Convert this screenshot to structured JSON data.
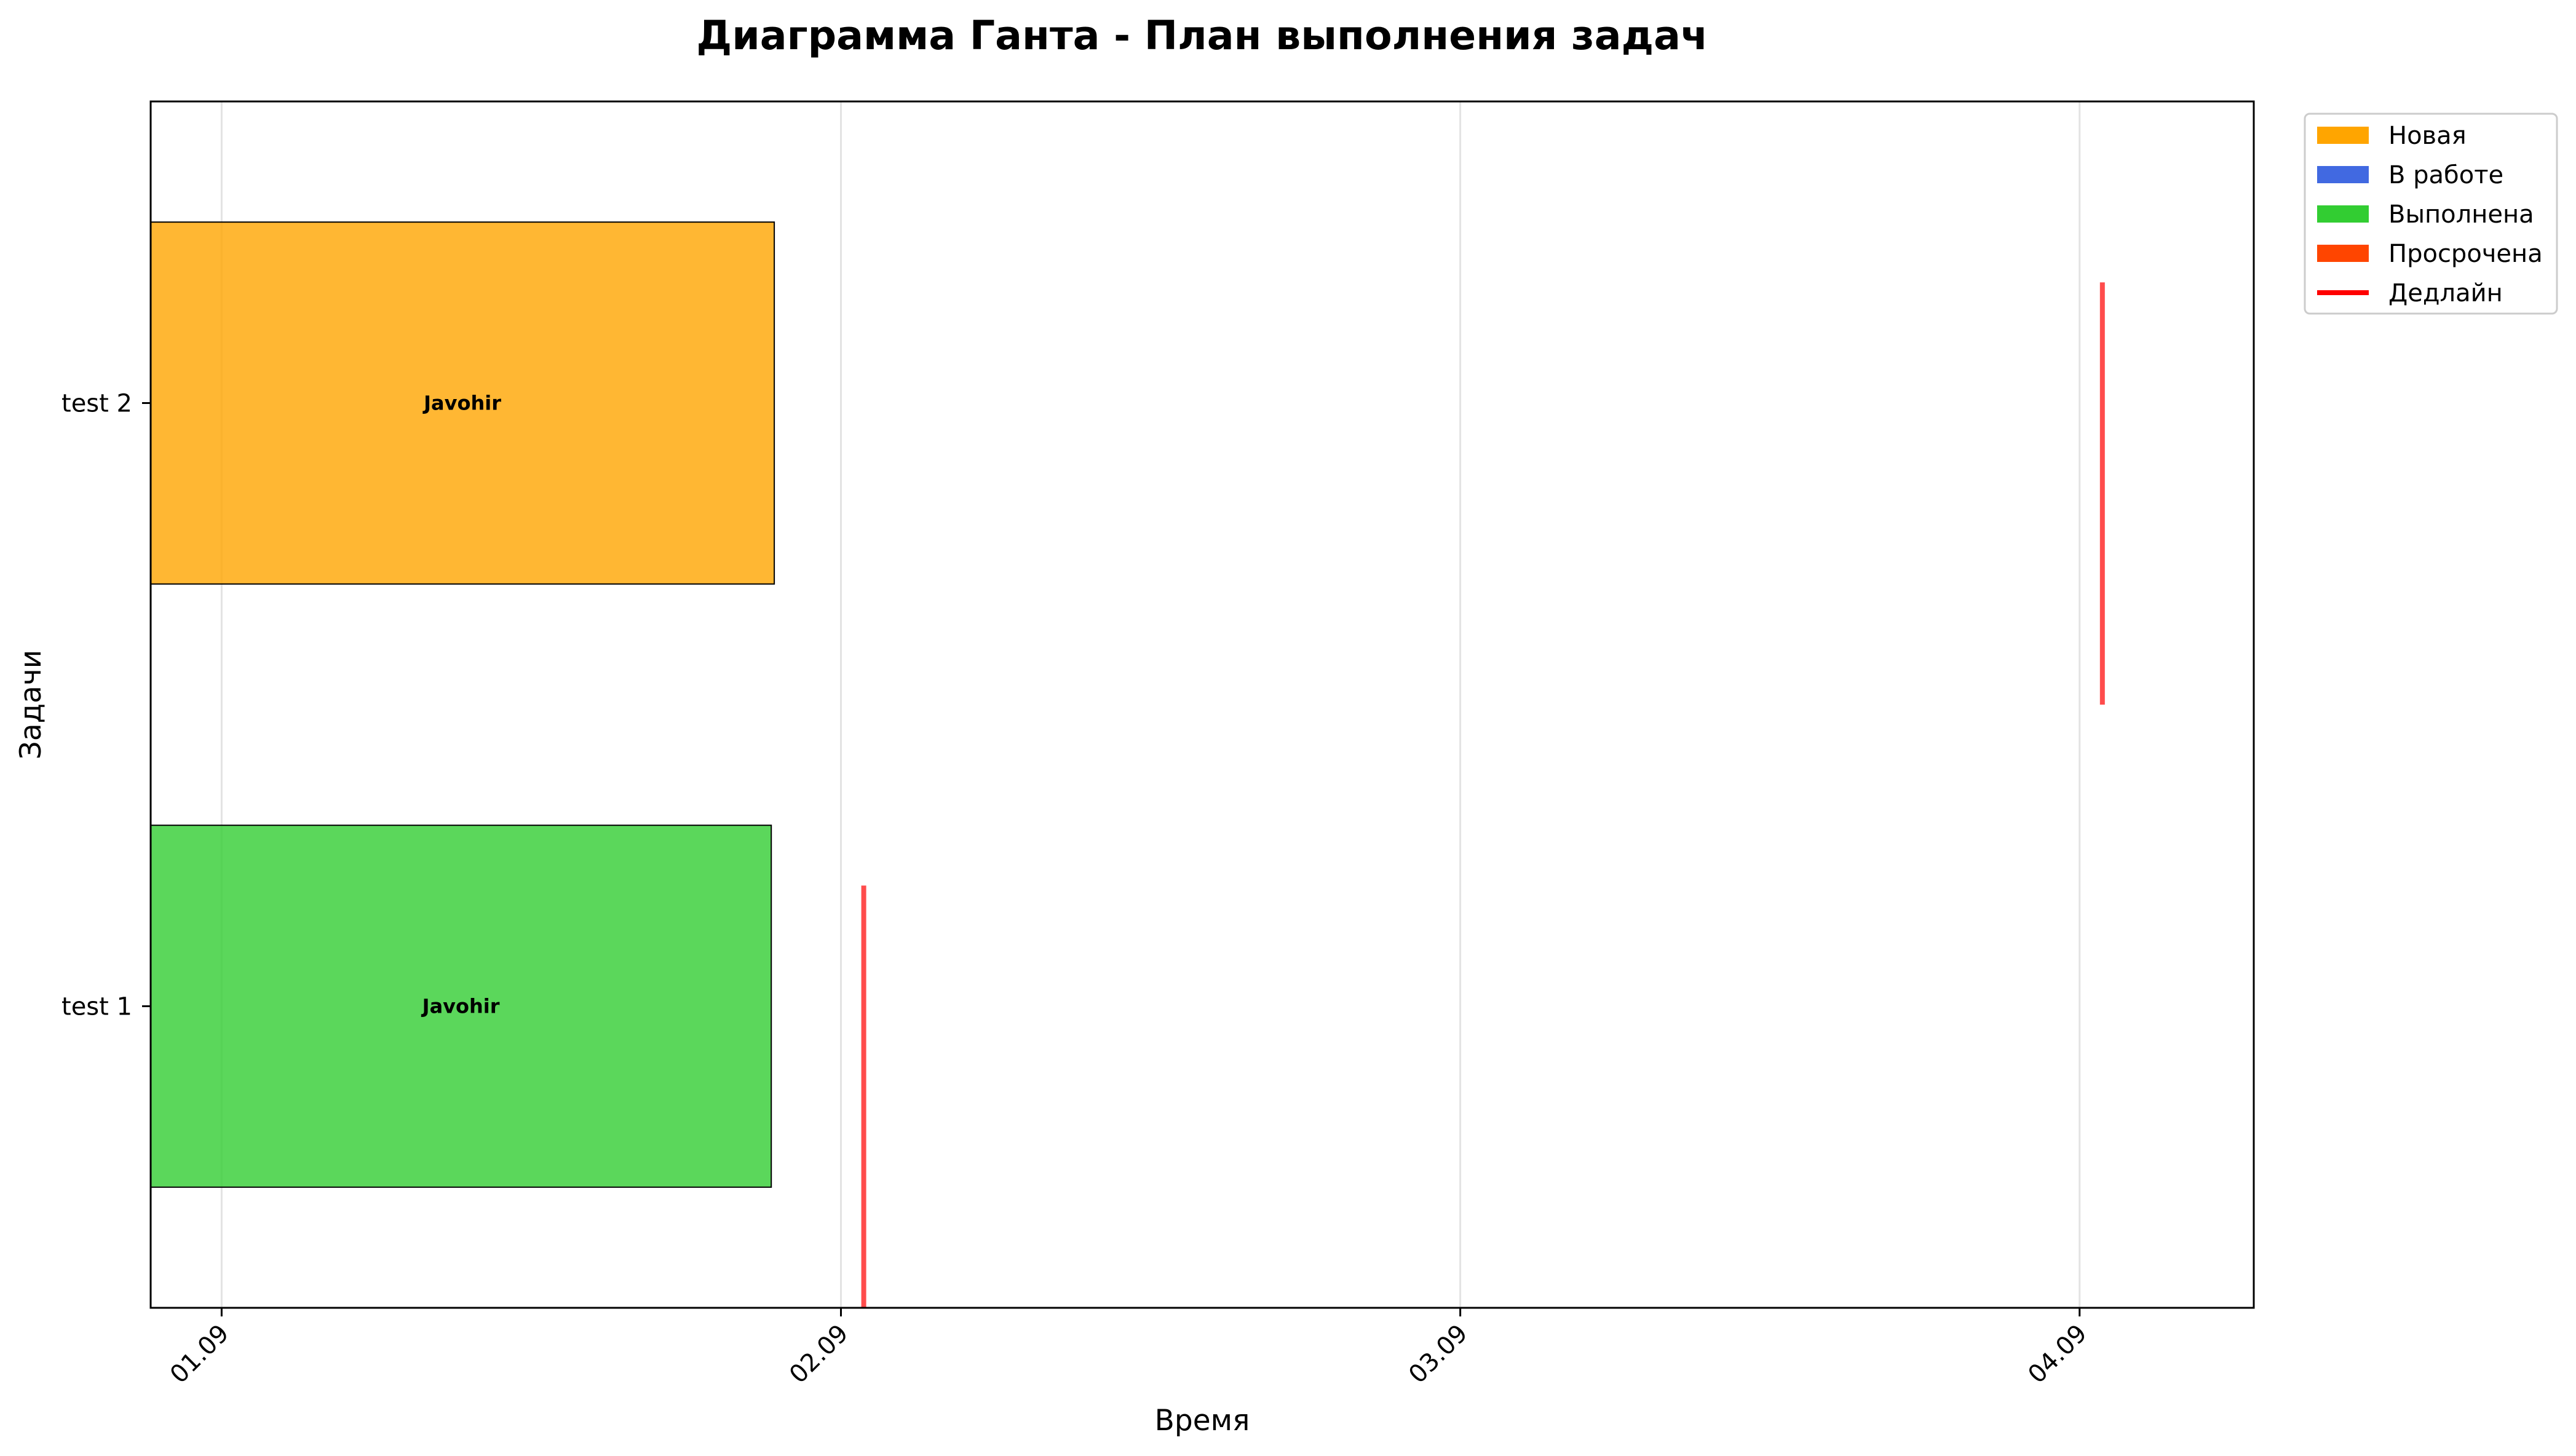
{
  "chart_data": {
    "type": "gantt",
    "title": "Диаграмма Ганта - План выполнения задач",
    "xlabel": "Время",
    "ylabel": "Задачи",
    "x_ticks": [
      "01.09",
      "02.09",
      "03.09",
      "04.09"
    ],
    "xlim": [
      "2024-08-31T21:15",
      "2024-09-04T06:45"
    ],
    "grid": "x",
    "legend_position": "outside-top-right",
    "legend": [
      {
        "label": "Новая",
        "color": "#FFA500",
        "kind": "patch"
      },
      {
        "label": "В работе",
        "color": "#4169E1",
        "kind": "patch"
      },
      {
        "label": "Выполнена",
        "color": "#32CD32",
        "kind": "patch"
      },
      {
        "label": "Просрочена",
        "color": "#FF4500",
        "kind": "patch"
      },
      {
        "label": "Дедлайн",
        "color": "#FF0000",
        "kind": "line"
      }
    ],
    "tasks": [
      {
        "name": "test 2",
        "assignee": "Javohir",
        "status": "Новая",
        "color": "#FFA500",
        "start": "2024-08-31T21:15",
        "end": "2024-09-01T21:25",
        "deadline": "2024-09-04T00:53"
      },
      {
        "name": "test 1",
        "assignee": "Javohir",
        "status": "Выполнена",
        "color": "#32CD32",
        "start": "2024-08-31T21:15",
        "end": "2024-09-01T21:18",
        "deadline": "2024-09-02T00:53"
      }
    ]
  }
}
